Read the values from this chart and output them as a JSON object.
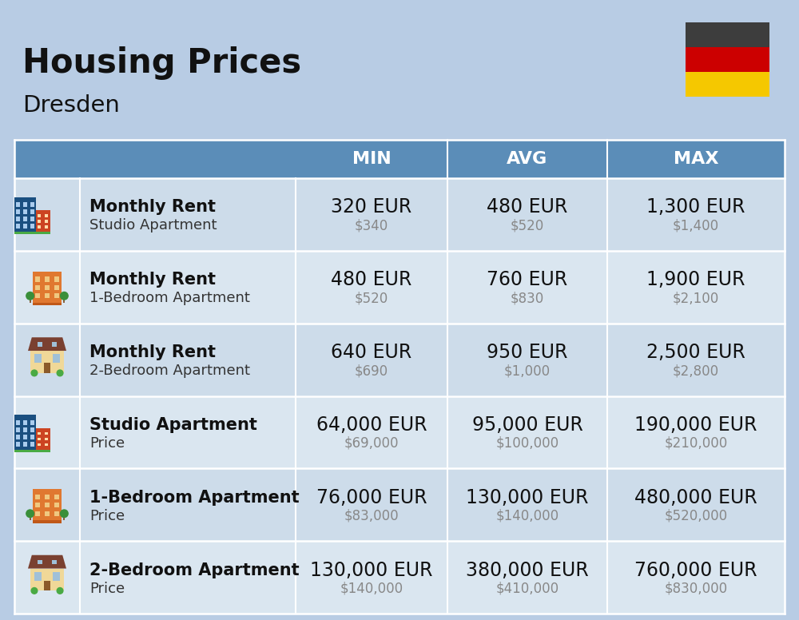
{
  "title": "Housing Prices",
  "subtitle": "Dresden",
  "background_color": "#b8cce4",
  "header_bg_color": "#5b8db8",
  "header_text_color": "#ffffff",
  "row_colors": [
    "#cddcea",
    "#dae6f0"
  ],
  "col_headers": [
    "MIN",
    "AVG",
    "MAX"
  ],
  "rows": [
    {
      "bold_label": "Monthly Rent",
      "sub_label": "Studio Apartment",
      "min_eur": "320 EUR",
      "min_usd": "$340",
      "avg_eur": "480 EUR",
      "avg_usd": "$520",
      "max_eur": "1,300 EUR",
      "max_usd": "$1,400",
      "icon_type": "studio_blue"
    },
    {
      "bold_label": "Monthly Rent",
      "sub_label": "1-Bedroom Apartment",
      "min_eur": "480 EUR",
      "min_usd": "$520",
      "avg_eur": "760 EUR",
      "avg_usd": "$830",
      "max_eur": "1,900 EUR",
      "max_usd": "$2,100",
      "icon_type": "one_bed_orange"
    },
    {
      "bold_label": "Monthly Rent",
      "sub_label": "2-Bedroom Apartment",
      "min_eur": "640 EUR",
      "min_usd": "$690",
      "avg_eur": "950 EUR",
      "avg_usd": "$1,000",
      "max_eur": "2,500 EUR",
      "max_usd": "$2,800",
      "icon_type": "two_bed_house"
    },
    {
      "bold_label": "Studio Apartment",
      "sub_label": "Price",
      "min_eur": "64,000 EUR",
      "min_usd": "$69,000",
      "avg_eur": "95,000 EUR",
      "avg_usd": "$100,000",
      "max_eur": "190,000 EUR",
      "max_usd": "$210,000",
      "icon_type": "studio_blue"
    },
    {
      "bold_label": "1-Bedroom Apartment",
      "sub_label": "Price",
      "min_eur": "76,000 EUR",
      "min_usd": "$83,000",
      "avg_eur": "130,000 EUR",
      "avg_usd": "$140,000",
      "max_eur": "480,000 EUR",
      "max_usd": "$520,000",
      "icon_type": "one_bed_orange"
    },
    {
      "bold_label": "2-Bedroom Apartment",
      "sub_label": "Price",
      "min_eur": "130,000 EUR",
      "min_usd": "$140,000",
      "avg_eur": "380,000 EUR",
      "avg_usd": "$410,000",
      "max_eur": "760,000 EUR",
      "max_usd": "$830,000",
      "icon_type": "two_bed_house"
    }
  ],
  "flag_colors": [
    "#3d3d3d",
    "#cc0000",
    "#f5c800"
  ],
  "eur_fontsize": 17,
  "usd_fontsize": 12,
  "label_bold_fontsize": 15,
  "label_sub_fontsize": 13,
  "header_fontsize": 16,
  "title_fontsize": 30,
  "subtitle_fontsize": 21
}
